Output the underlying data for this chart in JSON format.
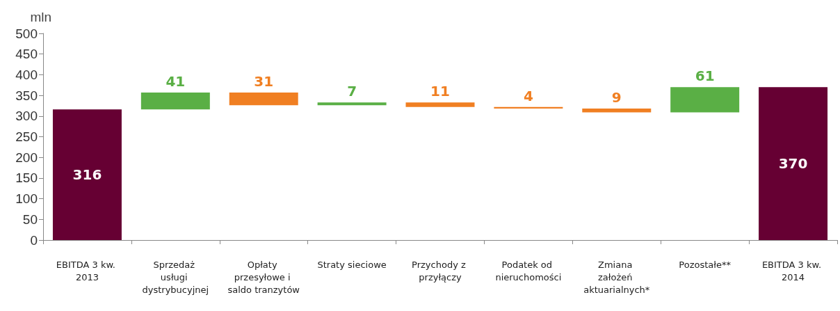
{
  "chart_data": {
    "type": "bar",
    "ylabel": "mln",
    "categories": [
      "EBITDA 3 kw. 2013",
      "Sprzedaż usługi dystrybucyjnej",
      "Opłaty przesyłowe i saldo tranzytów",
      "Straty sieciowe",
      "Przychody z przyłączy",
      "Podatek od nieruchomości",
      "Zmiana założeń aktuarialnych*",
      "Pozostałe**",
      "EBITDA 3 kw. 2014"
    ],
    "base": [
      0,
      316,
      357,
      326,
      333,
      322,
      318,
      309,
      0
    ],
    "values": [
      316,
      41,
      -31,
      7,
      -11,
      -4,
      -9,
      61,
      370
    ],
    "value_labels": [
      "316",
      "41",
      "31",
      "7",
      "11",
      "4",
      "9",
      "61",
      "370"
    ],
    "colors": [
      "#660033",
      "#5aaf45",
      "#f07f22",
      "#5aaf45",
      "#f07f22",
      "#f07f22",
      "#f07f22",
      "#5aaf45",
      "#660033"
    ],
    "ylim": [
      0,
      500
    ],
    "yticks": [
      0,
      50,
      100,
      150,
      200,
      250,
      300,
      350,
      400,
      450,
      500
    ],
    "grid": false
  }
}
